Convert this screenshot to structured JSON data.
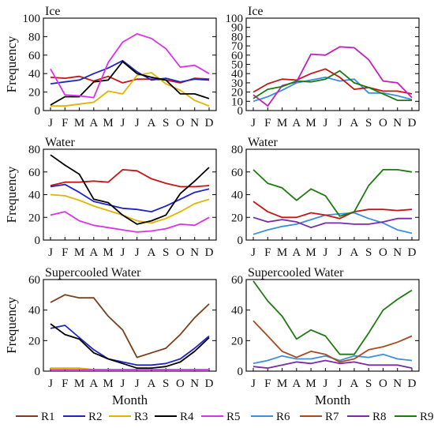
{
  "figure": {
    "xlabel": "Month",
    "ylabel": "Frequency"
  },
  "months": [
    "J",
    "F",
    "M",
    "A",
    "M",
    "J",
    "J",
    "A",
    "S",
    "O",
    "N",
    "D"
  ],
  "legend": [
    {
      "name": "R1",
      "color": "#7B3F1A"
    },
    {
      "name": "R2",
      "color": "#1F24C8"
    },
    {
      "name": "R3",
      "color": "#E0B400"
    },
    {
      "name": "R4",
      "color": "#000000"
    },
    {
      "name": "R5",
      "color": "#D833E8"
    },
    {
      "name": "R6",
      "color": "#3B8FE0"
    },
    {
      "name": "R7",
      "color": "#A84A1E"
    },
    {
      "name": "R8",
      "color": "#7A2AA8"
    },
    {
      "name": "R9",
      "color": "#1E7A10"
    }
  ],
  "chart_data": [
    {
      "type": "line",
      "title": "Ice",
      "xlabel": "",
      "ylabel": "Frequency",
      "categories": [
        "J",
        "F",
        "M",
        "A",
        "M",
        "J",
        "J",
        "A",
        "S",
        "O",
        "N",
        "D"
      ],
      "ylim": [
        0,
        100
      ],
      "yticks": [
        0,
        20,
        40,
        60,
        80,
        100
      ],
      "grid": false,
      "series": [
        {
          "name": "R1",
          "color": "#C81414",
          "values": [
            36,
            35,
            37,
            32,
            37,
            30,
            34,
            34,
            33,
            30,
            35,
            34
          ]
        },
        {
          "name": "R2",
          "color": "#1F24C8",
          "values": [
            29,
            31,
            33,
            40,
            46,
            54,
            42,
            33,
            35,
            31,
            34,
            33
          ]
        },
        {
          "name": "R3",
          "color": "#E0B400",
          "values": [
            5,
            5,
            7,
            9,
            21,
            18,
            38,
            41,
            29,
            22,
            11,
            5
          ]
        },
        {
          "name": "R4",
          "color": "#000000",
          "values": [
            6,
            15,
            15,
            31,
            33,
            53,
            40,
            36,
            33,
            18,
            18,
            13
          ]
        },
        {
          "name": "R5",
          "color": "#D833E8",
          "values": [
            45,
            17,
            16,
            14,
            52,
            74,
            83,
            78,
            67,
            47,
            49,
            40
          ]
        }
      ]
    },
    {
      "type": "line",
      "title": "Ice",
      "xlabel": "",
      "ylabel": "",
      "categories": [
        "J",
        "F",
        "M",
        "A",
        "M",
        "J",
        "J",
        "A",
        "S",
        "O",
        "N",
        "D"
      ],
      "ylim": [
        0,
        100
      ],
      "yticks": [
        0,
        10,
        20,
        30,
        40,
        50,
        60,
        70,
        80,
        90,
        100
      ],
      "grid": false,
      "series": [
        {
          "name": "R6",
          "color": "#3B8FE0",
          "values": [
            10,
            15,
            22,
            30,
            33,
            36,
            32,
            34,
            19,
            19,
            16,
            12
          ]
        },
        {
          "name": "R7",
          "color": "#C81414",
          "values": [
            20,
            29,
            34,
            33,
            40,
            45,
            36,
            23,
            25,
            21,
            21,
            18
          ]
        },
        {
          "name": "R8",
          "color": "#C020C0",
          "values": [
            17,
            5,
            27,
            31,
            61,
            60,
            69,
            68,
            55,
            32,
            30,
            14
          ]
        },
        {
          "name": "R9",
          "color": "#1E7A10",
          "values": [
            13,
            23,
            26,
            32,
            31,
            34,
            43,
            30,
            25,
            18,
            11,
            11
          ]
        }
      ]
    },
    {
      "type": "line",
      "title": "Water",
      "xlabel": "",
      "ylabel": "Frequency",
      "categories": [
        "J",
        "F",
        "M",
        "A",
        "M",
        "J",
        "J",
        "A",
        "S",
        "O",
        "N",
        "D"
      ],
      "ylim": [
        0,
        80
      ],
      "yticks": [
        0,
        20,
        40,
        60,
        80
      ],
      "grid": false,
      "series": [
        {
          "name": "R1",
          "color": "#C81414",
          "values": [
            48,
            51,
            51,
            52,
            51,
            62,
            61,
            54,
            50,
            47,
            47,
            48
          ]
        },
        {
          "name": "R2",
          "color": "#1F24C8",
          "values": [
            47,
            49,
            42,
            34,
            31,
            28,
            27,
            25,
            30,
            36,
            42,
            45
          ]
        },
        {
          "name": "R3",
          "color": "#E0B400",
          "values": [
            40,
            39,
            35,
            30,
            26,
            22,
            17,
            15,
            19,
            25,
            32,
            36
          ]
        },
        {
          "name": "R4",
          "color": "#000000",
          "values": [
            75,
            66,
            58,
            36,
            33,
            22,
            14,
            17,
            22,
            41,
            52,
            64
          ]
        },
        {
          "name": "R5",
          "color": "#D833E8",
          "values": [
            22,
            25,
            17,
            13,
            11,
            9,
            7,
            8,
            10,
            14,
            13,
            20
          ]
        }
      ]
    },
    {
      "type": "line",
      "title": "Water",
      "xlabel": "",
      "ylabel": "",
      "categories": [
        "J",
        "F",
        "M",
        "A",
        "M",
        "J",
        "J",
        "A",
        "S",
        "O",
        "N",
        "D"
      ],
      "ylim": [
        0,
        80
      ],
      "yticks": [
        0,
        20,
        40,
        60,
        80
      ],
      "grid": false,
      "series": [
        {
          "name": "R6",
          "color": "#3B8FE0",
          "values": [
            5,
            9,
            12,
            14,
            18,
            22,
            23,
            24,
            19,
            15,
            9,
            6
          ]
        },
        {
          "name": "R7",
          "color": "#C81414",
          "values": [
            34,
            25,
            20,
            20,
            24,
            22,
            19,
            25,
            27,
            27,
            26,
            27
          ]
        },
        {
          "name": "R8",
          "color": "#7A2AA8",
          "values": [
            20,
            16,
            18,
            16,
            11,
            15,
            15,
            14,
            14,
            16,
            19,
            19
          ]
        },
        {
          "name": "R9",
          "color": "#1E7A10",
          "values": [
            62,
            50,
            46,
            35,
            45,
            39,
            21,
            25,
            48,
            62,
            62,
            60
          ]
        }
      ]
    },
    {
      "type": "line",
      "title": "Supercooled Water",
      "xlabel": "Month",
      "ylabel": "Frequency",
      "categories": [
        "J",
        "F",
        "M",
        "A",
        "M",
        "J",
        "J",
        "A",
        "S",
        "O",
        "N",
        "D"
      ],
      "ylim": [
        0,
        60
      ],
      "yticks": [
        0,
        20,
        40,
        60
      ],
      "grid": false,
      "series": [
        {
          "name": "R1",
          "color": "#7B3F1A",
          "values": [
            45,
            50,
            48,
            48,
            36,
            27,
            9,
            12,
            15,
            24,
            35,
            44
          ]
        },
        {
          "name": "R2",
          "color": "#1F24C8",
          "values": [
            28,
            30,
            22,
            14,
            8,
            6,
            4,
            4,
            5,
            8,
            15,
            23
          ]
        },
        {
          "name": "R3",
          "color": "#E0B400",
          "values": [
            2,
            2,
            2,
            1,
            1,
            1,
            1,
            1,
            1,
            1,
            1,
            1
          ]
        },
        {
          "name": "R4",
          "color": "#000000",
          "values": [
            31,
            24,
            21,
            12,
            8,
            5,
            2,
            2,
            3,
            6,
            13,
            22
          ]
        },
        {
          "name": "R5",
          "color": "#D833E8",
          "values": [
            1,
            1,
            1,
            1,
            1,
            1,
            1,
            1,
            1,
            1,
            1,
            1
          ]
        }
      ]
    },
    {
      "type": "line",
      "title": "Supercooled Water",
      "xlabel": "Month",
      "ylabel": "",
      "categories": [
        "J",
        "F",
        "M",
        "A",
        "M",
        "J",
        "J",
        "A",
        "S",
        "O",
        "N",
        "D"
      ],
      "ylim": [
        0,
        60
      ],
      "yticks": [
        0,
        20,
        40,
        60
      ],
      "grid": false,
      "series": [
        {
          "name": "R6",
          "color": "#3B8FE0",
          "values": [
            5,
            7,
            10,
            8,
            8,
            10,
            7,
            10,
            9,
            11,
            8,
            7
          ]
        },
        {
          "name": "R7",
          "color": "#A84A1E",
          "values": [
            33,
            23,
            13,
            9,
            13,
            11,
            6,
            8,
            14,
            16,
            19,
            23
          ]
        },
        {
          "name": "R8",
          "color": "#7A2AA8",
          "values": [
            3,
            2,
            4,
            6,
            5,
            7,
            5,
            6,
            4,
            4,
            4,
            2
          ]
        },
        {
          "name": "R9",
          "color": "#1E7A10",
          "values": [
            59,
            46,
            36,
            21,
            27,
            23,
            11,
            11,
            25,
            40,
            47,
            53
          ]
        }
      ]
    }
  ]
}
